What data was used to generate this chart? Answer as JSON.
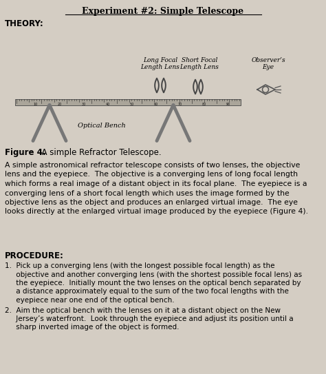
{
  "title": "Experiment #2: Simple Telescope",
  "background_color": "#d4cdc3",
  "theory_label": "THEORY:",
  "fig_caption_bold": "Figure 4.",
  "fig_caption_rest": "  A simple Refractor Telescope.",
  "long_focal_label": "Long Focal\nLength Lens",
  "short_focal_label": "Short Focal\nLength Lens",
  "observer_label": "Observer’s\nEye",
  "optical_bench_label": "Optical Bench",
  "body_line1": "A simple astronomical refractor telescope consists of two lenses, the objective",
  "body_line2": "lens and the eyepiece.  The objective is a converging lens of long focal length",
  "body_line3": "which forms a real image of a distant object in its focal plane.  The eyepiece is a",
  "body_line4": "converging lens of a short focal length which uses the image formed by the",
  "body_line5": "objective lens as the object and produces an enlarged virtual image.  The eye",
  "body_line6": "looks directly at the enlarged virtual image produced by the eyepiece (Figure 4).",
  "procedure_title": "PROCEDURE:",
  "proc1_line1": "1.  Pick up a converging lens (with the longest possible focal length) as the",
  "proc1_line2": "     objective and another converging lens (with the shortest possible focal lens) as",
  "proc1_line3": "     the eyepiece.  Initially mount the two lenses on the optical bench separated by",
  "proc1_line4": "     a distance approximately equal to the sum of the two focal lengths with the",
  "proc1_line5": "     eyepiece near one end of the optical bench.",
  "proc2_line1": "2.  Aim the optical bench with the lenses on it at a distant object on the New",
  "proc2_line2": "     Jersey’s waterfront.  Look through the eyepiece and adjust its position until a",
  "proc2_line3": "     sharp inverted image of the object is formed."
}
